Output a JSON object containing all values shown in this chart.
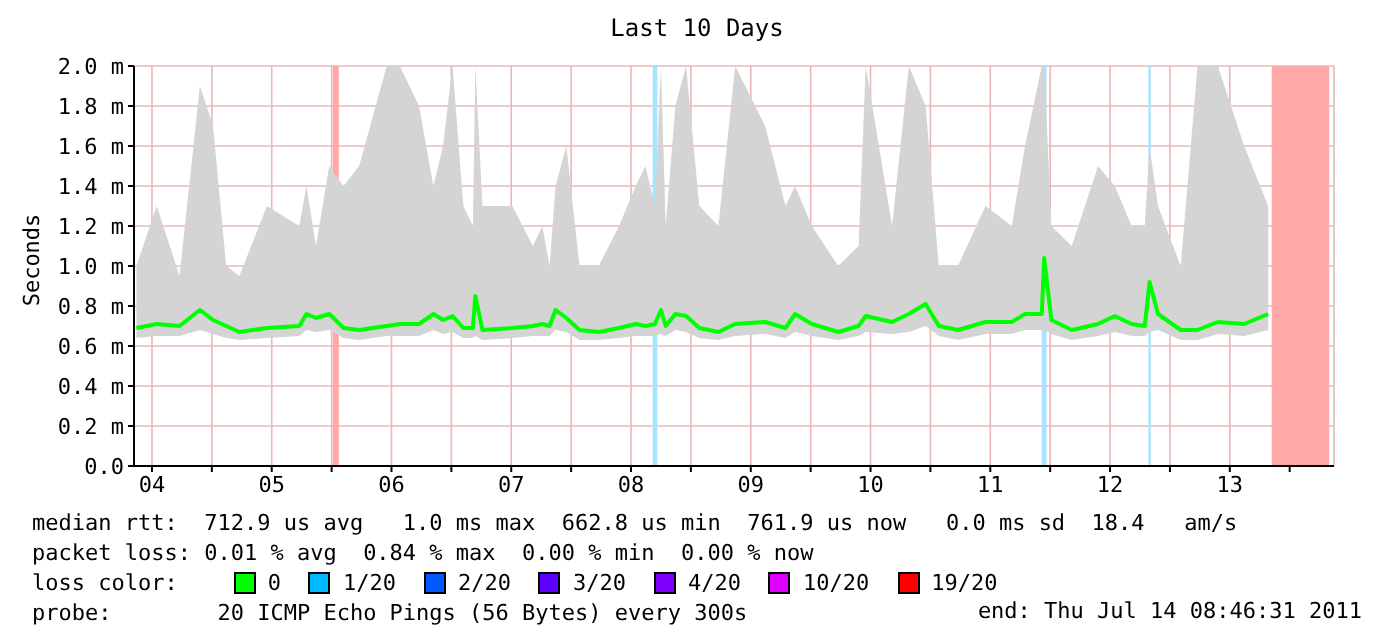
{
  "chart_data": {
    "type": "line",
    "title": "Last 10 Days",
    "ylabel": "Seconds",
    "xlim": [
      4.35,
      14.37
    ],
    "xticks": [
      {
        "value": 4.5,
        "label": "04"
      },
      {
        "value": 5,
        "label": null
      },
      {
        "value": 5.5,
        "label": "05"
      },
      {
        "value": 6,
        "label": null
      },
      {
        "value": 6.5,
        "label": "06"
      },
      {
        "value": 7,
        "label": null
      },
      {
        "value": 7.5,
        "label": "07"
      },
      {
        "value": 8,
        "label": null
      },
      {
        "value": 8.5,
        "label": "08"
      },
      {
        "value": 9,
        "label": null
      },
      {
        "value": 9.5,
        "label": "09"
      },
      {
        "value": 10,
        "label": null
      },
      {
        "value": 10.5,
        "label": "10"
      },
      {
        "value": 11,
        "label": null
      },
      {
        "value": 11.5,
        "label": "11"
      },
      {
        "value": 12,
        "label": null
      },
      {
        "value": 12.5,
        "label": "12"
      },
      {
        "value": 13,
        "label": null
      },
      {
        "value": 13.5,
        "label": "13"
      },
      {
        "value": 14,
        "label": null
      }
    ],
    "ylim": [
      0,
      2
    ],
    "yticks": [
      {
        "value": 0,
        "label": "0.0"
      },
      {
        "value": 0.2,
        "label": "0.2 m"
      },
      {
        "value": 0.4,
        "label": "0.4 m"
      },
      {
        "value": 0.6,
        "label": "0.6 m"
      },
      {
        "value": 0.8,
        "label": "0.8 m"
      },
      {
        "value": 1,
        "label": "1.0 m"
      },
      {
        "value": 1.2,
        "label": "1.2 m"
      },
      {
        "value": 1.4,
        "label": "1.4 m"
      },
      {
        "value": 1.6,
        "label": "1.6 m"
      },
      {
        "value": 1.8,
        "label": "1.8 m"
      },
      {
        "value": 2,
        "label": "2.0 m"
      }
    ],
    "x": [
      4.37,
      4.54,
      4.73,
      4.9,
      5.01,
      5.12,
      5.23,
      5.46,
      5.73,
      5.79,
      5.87,
      5.98,
      6.1,
      6.23,
      6.46,
      6.57,
      6.73,
      6.85,
      6.93,
      7.01,
      7.1,
      7.18,
      7.2,
      7.26,
      7.51,
      7.68,
      7.76,
      7.82,
      7.87,
      7.96,
      8.07,
      8.23,
      8.4,
      8.54,
      8.62,
      8.7,
      8.75,
      8.79,
      8.87,
      8.96,
      9.07,
      9.23,
      9.37,
      9.62,
      9.79,
      9.87,
      10.01,
      10.23,
      10.4,
      10.46,
      10.68,
      10.82,
      10.96,
      11.07,
      11.23,
      11.46,
      11.68,
      11.79,
      11.93,
      11.95,
      12.01,
      12.18,
      12.4,
      12.54,
      12.68,
      12.79,
      12.83,
      12.9,
      13.09,
      13.23,
      13.4,
      13.62,
      13.82
    ],
    "series": [
      {
        "name": "0",
        "color": "#00ff00",
        "values": [
          0.69,
          0.71,
          0.7,
          0.78,
          0.73,
          0.7,
          0.67,
          0.69,
          0.7,
          0.76,
          0.74,
          0.76,
          0.69,
          0.68,
          0.7,
          0.71,
          0.71,
          0.76,
          0.73,
          0.75,
          0.69,
          0.69,
          0.85,
          0.68,
          0.69,
          0.7,
          0.71,
          0.7,
          0.78,
          0.74,
          0.68,
          0.67,
          0.69,
          0.71,
          0.7,
          0.71,
          0.78,
          0.7,
          0.76,
          0.75,
          0.69,
          0.67,
          0.71,
          0.72,
          0.69,
          0.76,
          0.71,
          0.67,
          0.7,
          0.75,
          0.72,
          0.76,
          0.81,
          0.7,
          0.68,
          0.72,
          0.72,
          0.76,
          0.76,
          1.04,
          0.73,
          0.68,
          0.71,
          0.75,
          0.71,
          0.7,
          0.92,
          0.76,
          0.68,
          0.68,
          0.72,
          0.71,
          0.76
        ],
        "lower": [
          0.64,
          0.65,
          0.65,
          0.68,
          0.66,
          0.64,
          0.63,
          0.64,
          0.65,
          0.68,
          0.67,
          0.68,
          0.64,
          0.63,
          0.65,
          0.65,
          0.65,
          0.68,
          0.66,
          0.67,
          0.64,
          0.64,
          0.65,
          0.63,
          0.64,
          0.65,
          0.65,
          0.65,
          0.68,
          0.67,
          0.63,
          0.63,
          0.64,
          0.65,
          0.65,
          0.65,
          0.66,
          0.65,
          0.68,
          0.67,
          0.64,
          0.63,
          0.65,
          0.66,
          0.64,
          0.67,
          0.65,
          0.63,
          0.65,
          0.67,
          0.66,
          0.67,
          0.7,
          0.65,
          0.63,
          0.66,
          0.66,
          0.68,
          0.68,
          0.68,
          0.66,
          0.63,
          0.65,
          0.67,
          0.65,
          0.65,
          0.67,
          0.68,
          0.63,
          0.63,
          0.66,
          0.65,
          0.68
        ],
        "upper": [
          1.0,
          1.3,
          0.95,
          1.9,
          1.7,
          1.0,
          0.95,
          1.3,
          1.2,
          1.4,
          1.1,
          1.5,
          1.4,
          1.5,
          2.0,
          2.0,
          1.8,
          1.4,
          1.6,
          2.0,
          1.3,
          1.2,
          2.0,
          1.3,
          1.3,
          1.1,
          1.2,
          1.0,
          1.4,
          1.6,
          1.0,
          1.0,
          1.2,
          1.4,
          1.5,
          1.3,
          2.0,
          1.2,
          1.8,
          2.0,
          1.3,
          1.2,
          2.0,
          1.7,
          1.3,
          1.4,
          1.2,
          1.0,
          1.1,
          2.0,
          1.2,
          2.0,
          1.8,
          1.0,
          1.0,
          1.3,
          1.2,
          1.6,
          2.0,
          2.0,
          1.2,
          1.1,
          1.5,
          1.4,
          1.2,
          1.2,
          1.6,
          1.3,
          1.0,
          2.0,
          2.0,
          1.6,
          1.3
        ]
      },
      {
        "name": "1/20",
        "color": "#00b8ff",
        "values": [
          null,
          null,
          null,
          null,
          null,
          null,
          null,
          null,
          null,
          null,
          null,
          null,
          null,
          null,
          null,
          null,
          null,
          null,
          null,
          null,
          null,
          null,
          null,
          null,
          null,
          null,
          null,
          null,
          null,
          null,
          null,
          null,
          null,
          null,
          null,
          null,
          null,
          null,
          null,
          null,
          null,
          null,
          null,
          null,
          null,
          null,
          null,
          null,
          null,
          null,
          null,
          null,
          null,
          null,
          null,
          null,
          null,
          null,
          null,
          null,
          null,
          null,
          null,
          null,
          null,
          null,
          null,
          null,
          null,
          null,
          null,
          null,
          null
        ]
      },
      {
        "name": "2/20",
        "color": "#0059ff",
        "values": [
          null,
          null,
          null,
          null,
          null,
          null,
          null,
          null,
          null,
          null,
          null,
          null,
          null,
          null,
          null,
          null,
          null,
          null,
          null,
          null,
          null,
          null,
          null,
          null,
          null,
          null,
          null,
          null,
          null,
          null,
          null,
          null,
          null,
          null,
          null,
          null,
          null,
          null,
          null,
          null,
          null,
          null,
          null,
          null,
          null,
          null,
          null,
          null,
          null,
          null,
          null,
          null,
          null,
          null,
          null,
          null,
          null,
          null,
          null,
          null,
          null,
          null,
          null,
          null,
          null,
          null,
          null,
          null,
          null,
          null,
          null,
          null,
          null
        ]
      },
      {
        "name": "3/20",
        "color": "#5e00ff",
        "values": [
          null,
          null,
          null,
          null,
          null,
          null,
          null,
          null,
          null,
          null,
          null,
          null,
          null,
          null,
          null,
          null,
          null,
          null,
          null,
          null,
          null,
          null,
          null,
          null,
          null,
          null,
          null,
          null,
          null,
          null,
          null,
          null,
          null,
          null,
          null,
          null,
          null,
          null,
          null,
          null,
          null,
          null,
          null,
          null,
          null,
          null,
          null,
          null,
          null,
          null,
          null,
          null,
          null,
          null,
          null,
          null,
          null,
          null,
          null,
          null,
          null,
          null,
          null,
          null,
          null,
          null,
          null,
          null,
          null,
          null,
          null,
          null,
          null
        ]
      },
      {
        "name": "4/20",
        "color": "#7e00ff",
        "values": [
          null,
          null,
          null,
          null,
          null,
          null,
          null,
          null,
          null,
          null,
          null,
          null,
          null,
          null,
          null,
          null,
          null,
          null,
          null,
          null,
          null,
          null,
          null,
          null,
          null,
          null,
          null,
          null,
          null,
          null,
          null,
          null,
          null,
          null,
          null,
          null,
          null,
          null,
          null,
          null,
          null,
          null,
          null,
          null,
          null,
          null,
          null,
          null,
          null,
          null,
          null,
          null,
          null,
          null,
          null,
          null,
          null,
          null,
          null,
          null,
          null,
          null,
          null,
          null,
          null,
          null,
          null,
          null,
          null,
          null,
          null,
          null,
          null
        ]
      },
      {
        "name": "10/20",
        "color": "#dd00ff",
        "values": [
          null,
          null,
          null,
          null,
          null,
          null,
          null,
          null,
          null,
          null,
          null,
          null,
          null,
          null,
          null,
          null,
          null,
          null,
          null,
          null,
          null,
          null,
          null,
          null,
          null,
          null,
          null,
          null,
          null,
          null,
          null,
          null,
          null,
          null,
          null,
          null,
          null,
          null,
          null,
          null,
          null,
          null,
          null,
          null,
          null,
          null,
          null,
          null,
          null,
          null,
          null,
          null,
          null,
          null,
          null,
          null,
          null,
          null,
          null,
          null,
          null,
          null,
          null,
          null,
          null,
          null,
          null,
          null,
          null,
          null,
          null,
          null,
          null
        ]
      },
      {
        "name": "19/20",
        "color": "#ff0000",
        "values": [
          null,
          null,
          null,
          null,
          null,
          null,
          null,
          null,
          null,
          null,
          null,
          null,
          null,
          null,
          null,
          null,
          null,
          null,
          null,
          null,
          null,
          null,
          null,
          null,
          null,
          null,
          null,
          null,
          null,
          null,
          null,
          null,
          null,
          null,
          null,
          null,
          null,
          null,
          null,
          null,
          null,
          null,
          null,
          null,
          null,
          null,
          null,
          null,
          null,
          null,
          null,
          null,
          null,
          null,
          null,
          null,
          null,
          null,
          null,
          null,
          null,
          null,
          null,
          null,
          null,
          null,
          null,
          null,
          null,
          null,
          null,
          null,
          null
        ]
      }
    ],
    "bands": [
      {
        "axis": "x",
        "from": 6.01,
        "to": 6.06,
        "color": "#ffa8a8"
      },
      {
        "axis": "x",
        "from": 8.68,
        "to": 8.72,
        "color": "#a8e4ff"
      },
      {
        "axis": "x",
        "from": 11.93,
        "to": 11.97,
        "color": "#a8e4ff"
      },
      {
        "axis": "x",
        "from": 12.82,
        "to": 12.84,
        "color": "#a8e4ff"
      },
      {
        "axis": "x",
        "from": 13.85,
        "to": 14.33,
        "color": "#ffa8a8"
      }
    ],
    "grid": true,
    "legend": "bottom",
    "legend_title": "loss color:",
    "marker": "none",
    "line_style": "solid",
    "annotations": [
      "median rtt:  712.9 us avg   1.0 ms max  662.8 us min  761.9 us now   0.0 ms sd  18.4   am/s",
      "packet loss: 0.01 % avg  0.84 % max  0.00 % min  0.00 % now",
      "probe:        20 ICMP Echo Pings (56 Bytes) every 300s",
      "end: Thu Jul 14 08:46:31 2011"
    ]
  }
}
